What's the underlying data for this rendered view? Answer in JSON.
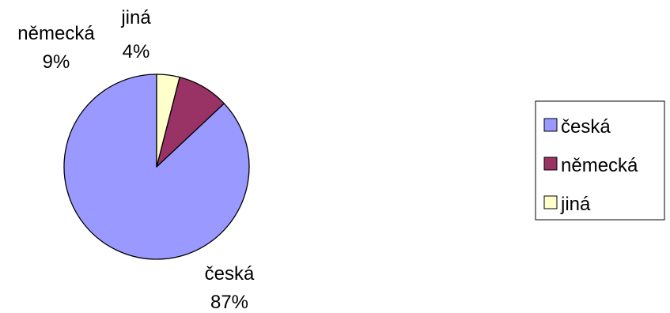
{
  "chart_data": {
    "type": "pie",
    "categories": [
      "česká",
      "německá",
      "jiná"
    ],
    "values": [
      87,
      9,
      4
    ],
    "value_labels": [
      "87%",
      "9%",
      "4%"
    ],
    "colors": [
      "#9999ff",
      "#993366",
      "#ffffcc"
    ],
    "start_angle_deg": 0,
    "direction": "counterclockwise",
    "legend": {
      "position": "right",
      "entries": [
        "česká",
        "německá",
        "jiná"
      ]
    },
    "title": ""
  }
}
